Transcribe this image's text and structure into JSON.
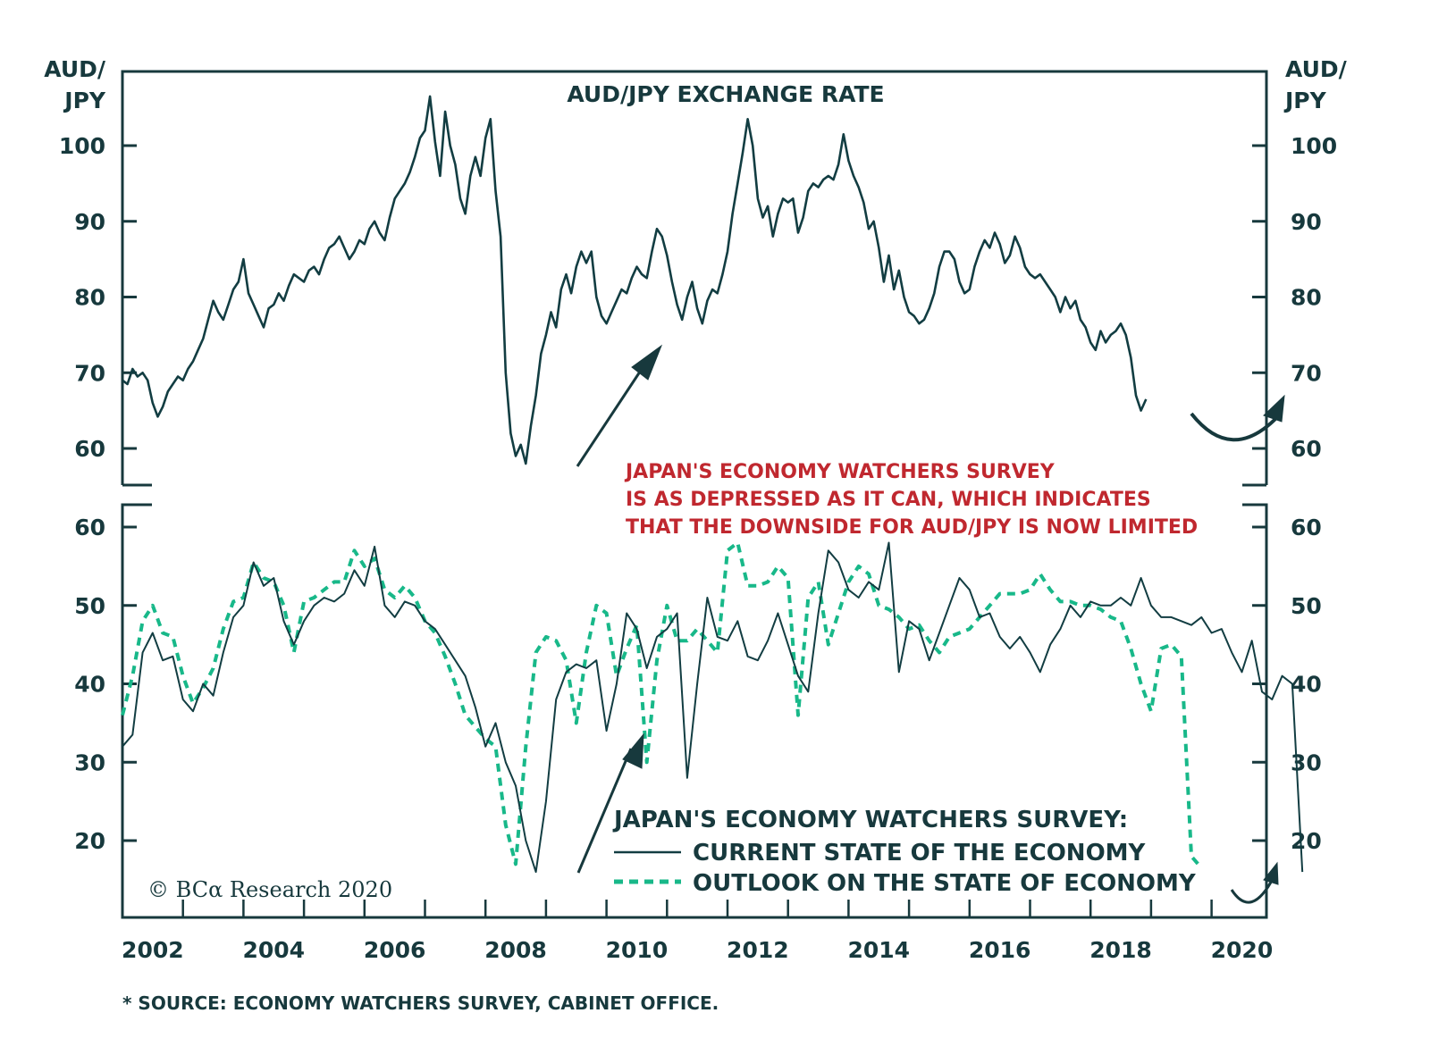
{
  "colors": {
    "axis": "#17393d",
    "audjpy_line": "#123d42",
    "current_line": "#123d42",
    "outlook_line": "#18b889",
    "annotation_red": "#c0282f"
  },
  "copyright": "© BCα Research 2020",
  "source_note": "* SOURCE: ECONOMY WATCHERS SURVEY, CABINET OFFICE.",
  "annotation": {
    "lines": [
      "JAPAN'S ECONOMY WATCHERS SURVEY",
      "IS AS DEPRESSED AS IT CAN, WHICH INDICATES",
      "THAT THE DOWNSIDE FOR AUD/JPY IS NOW LIMITED"
    ]
  },
  "chart_data": [
    {
      "type": "line",
      "title": "AUD/JPY EXCHANGE RATE",
      "ylabel_left": [
        "AUD/",
        "JPY"
      ],
      "ylabel_right": [
        "AUD/",
        "JPY"
      ],
      "ylim": [
        55,
        108
      ],
      "yticks": [
        60,
        70,
        80,
        90,
        100
      ],
      "xlim": [
        2002.0,
        2020.95
      ],
      "grid": false,
      "series": [
        {
          "name": "AUD/JPY",
          "x_start": 2002.0,
          "x_step_months": 1,
          "values": [
            69.0,
            68.5,
            70.5,
            69.5,
            70.0,
            69.0,
            66.0,
            64.2,
            65.5,
            67.5,
            68.5,
            69.5,
            69.0,
            70.5,
            71.5,
            73.0,
            74.5,
            77.0,
            79.5,
            78.0,
            77.0,
            79.0,
            81.0,
            82.0,
            85.0,
            80.5,
            79.0,
            77.5,
            76.0,
            78.5,
            79.0,
            80.5,
            79.5,
            81.5,
            83.0,
            82.5,
            82.0,
            83.5,
            84.0,
            83.0,
            85.0,
            86.5,
            87.0,
            88.0,
            86.5,
            85.0,
            86.0,
            87.5,
            87.0,
            89.0,
            90.0,
            88.5,
            87.5,
            90.5,
            93.0,
            94.0,
            95.0,
            96.5,
            98.5,
            101.0,
            102.0,
            106.5,
            100.5,
            96.0,
            104.5,
            100.0,
            97.5,
            93.0,
            91.0,
            96.0,
            98.5,
            96.0,
            101.0,
            103.5,
            94.0,
            88.0,
            70.0,
            62.0,
            59.0,
            60.5,
            58.0,
            63.0,
            67.0,
            72.5,
            75.0,
            78.0,
            76.0,
            81.0,
            83.0,
            80.5,
            84.0,
            86.0,
            84.5,
            86.0,
            80.0,
            77.5,
            76.5,
            78.0,
            79.5,
            81.0,
            80.5,
            82.5,
            84.0,
            83.0,
            82.5,
            86.0,
            89.0,
            88.0,
            85.5,
            82.0,
            79.0,
            77.0,
            80.0,
            82.0,
            78.5,
            76.5,
            79.5,
            81.0,
            80.5,
            83.0,
            86.0,
            91.0,
            95.0,
            99.0,
            103.5,
            100.0,
            93.0,
            90.5,
            92.0,
            88.0,
            91.0,
            93.0,
            92.5,
            93.0,
            88.5,
            90.5,
            94.0,
            95.0,
            94.5,
            95.5,
            96.0,
            95.5,
            97.5,
            101.5,
            98.0,
            96.0,
            94.5,
            92.5,
            89.0,
            90.0,
            86.5,
            82.0,
            85.5,
            81.0,
            83.5,
            80.0,
            78.0,
            77.5,
            76.5,
            77.0,
            78.5,
            80.5,
            84.0,
            86.0,
            86.0,
            85.0,
            82.0,
            80.5,
            81.0,
            84.0,
            86.0,
            87.5,
            86.5,
            88.5,
            87.0,
            84.5,
            85.5,
            88.0,
            86.5,
            84.0,
            83.0,
            82.5,
            83.0,
            82.0,
            81.0,
            80.0,
            78.0,
            80.0,
            78.5,
            79.5,
            77.0,
            76.0,
            74.0,
            73.0,
            75.5,
            74.0,
            75.0,
            75.5,
            76.5,
            75.0,
            72.0,
            67.0,
            65.0,
            66.5
          ]
        }
      ]
    },
    {
      "type": "line",
      "title": "JAPAN'S ECONOMY WATCHERS SURVEY:",
      "ylim": [
        9.5,
        62.5
      ],
      "yticks": [
        20,
        30,
        40,
        50,
        60
      ],
      "xlim": [
        2002.0,
        2020.95
      ],
      "xticks_labeled": [
        "2002",
        "2004",
        "2006",
        "2008",
        "2010",
        "2012",
        "2014",
        "2016",
        "2018",
        "2020"
      ],
      "xticks_yearly": [
        2003,
        2004,
        2005,
        2006,
        2007,
        2008,
        2009,
        2010,
        2011,
        2012,
        2013,
        2014,
        2015,
        2016,
        2017,
        2018,
        2019,
        2020
      ],
      "grid": false,
      "legend": "bottom-center",
      "series": [
        {
          "name": "CURRENT STATE OF THE ECONOMY",
          "style": "solid",
          "x_start": 2002.0,
          "x_step_months": 2,
          "values": [
            32.0,
            33.5,
            44.0,
            46.5,
            43.0,
            43.5,
            38.0,
            36.5,
            40.0,
            38.5,
            44.0,
            48.5,
            50.0,
            55.5,
            52.5,
            53.5,
            48.0,
            45.0,
            48.0,
            50.0,
            51.0,
            50.5,
            51.5,
            54.5,
            52.5,
            57.5,
            50.0,
            48.5,
            50.5,
            50.0,
            48.0,
            47.0,
            45.0,
            43.0,
            41.0,
            37.0,
            32.0,
            35.0,
            30.0,
            27.0,
            20.0,
            16.0,
            25.0,
            38.0,
            41.5,
            42.5,
            42.0,
            43.0,
            34.0,
            40.0,
            49.0,
            47.0,
            42.0,
            46.0,
            47.0,
            49.0,
            28.0,
            40.0,
            51.0,
            46.0,
            45.5,
            48.0,
            43.5,
            43.0,
            45.5,
            49.0,
            45.0,
            41.0,
            39.0,
            49.0,
            57.0,
            55.5,
            52.0,
            51.0,
            53.0,
            52.0,
            58.0,
            41.5,
            48.0,
            47.0,
            43.0,
            46.5,
            50.0,
            53.5,
            52.0,
            48.5,
            49.0,
            46.0,
            44.5,
            46.0,
            44.0,
            41.5,
            45.0,
            47.0,
            50.0,
            48.5,
            50.5,
            50.0,
            50.0,
            51.0,
            50.0,
            53.5,
            50.0,
            48.5,
            48.5,
            48.0,
            47.5,
            48.5,
            46.5,
            47.0,
            44.0,
            41.5,
            45.5,
            39.0,
            38.0,
            41.0,
            40.0,
            16.0
          ]
        },
        {
          "name": "OUTLOOK ON THE STATE OF ECONOMY",
          "style": "dashed",
          "x_start": 2002.0,
          "x_step_months": 2,
          "values": [
            36.0,
            41.0,
            48.0,
            50.0,
            46.5,
            46.0,
            41.0,
            37.5,
            39.5,
            42.0,
            47.0,
            50.5,
            51.0,
            55.5,
            53.5,
            53.0,
            50.0,
            44.0,
            50.5,
            51.0,
            52.0,
            53.0,
            53.0,
            57.0,
            55.0,
            56.0,
            52.0,
            51.0,
            52.5,
            51.0,
            48.0,
            46.5,
            43.5,
            40.0,
            36.0,
            34.5,
            33.0,
            32.0,
            22.0,
            17.0,
            32.0,
            44.0,
            46.0,
            45.5,
            43.0,
            35.0,
            44.0,
            50.0,
            49.0,
            41.0,
            44.5,
            47.5,
            30.0,
            43.0,
            50.0,
            45.5,
            45.5,
            47.0,
            45.5,
            44.0,
            57.0,
            58.0,
            52.5,
            52.5,
            53.0,
            55.0,
            53.5,
            36.0,
            51.0,
            53.0,
            45.0,
            49.0,
            53.0,
            55.0,
            54.0,
            50.0,
            49.5,
            48.5,
            47.0,
            47.5,
            45.5,
            44.0,
            46.0,
            46.5,
            47.0,
            48.5,
            50.0,
            51.5,
            51.5,
            51.5,
            52.0,
            54.0,
            52.0,
            50.5,
            50.5,
            50.0,
            50.0,
            49.5,
            48.5,
            48.0,
            44.5,
            40.0,
            36.5,
            44.5,
            45.0,
            43.5,
            18.0,
            16.5
          ]
        }
      ]
    }
  ]
}
